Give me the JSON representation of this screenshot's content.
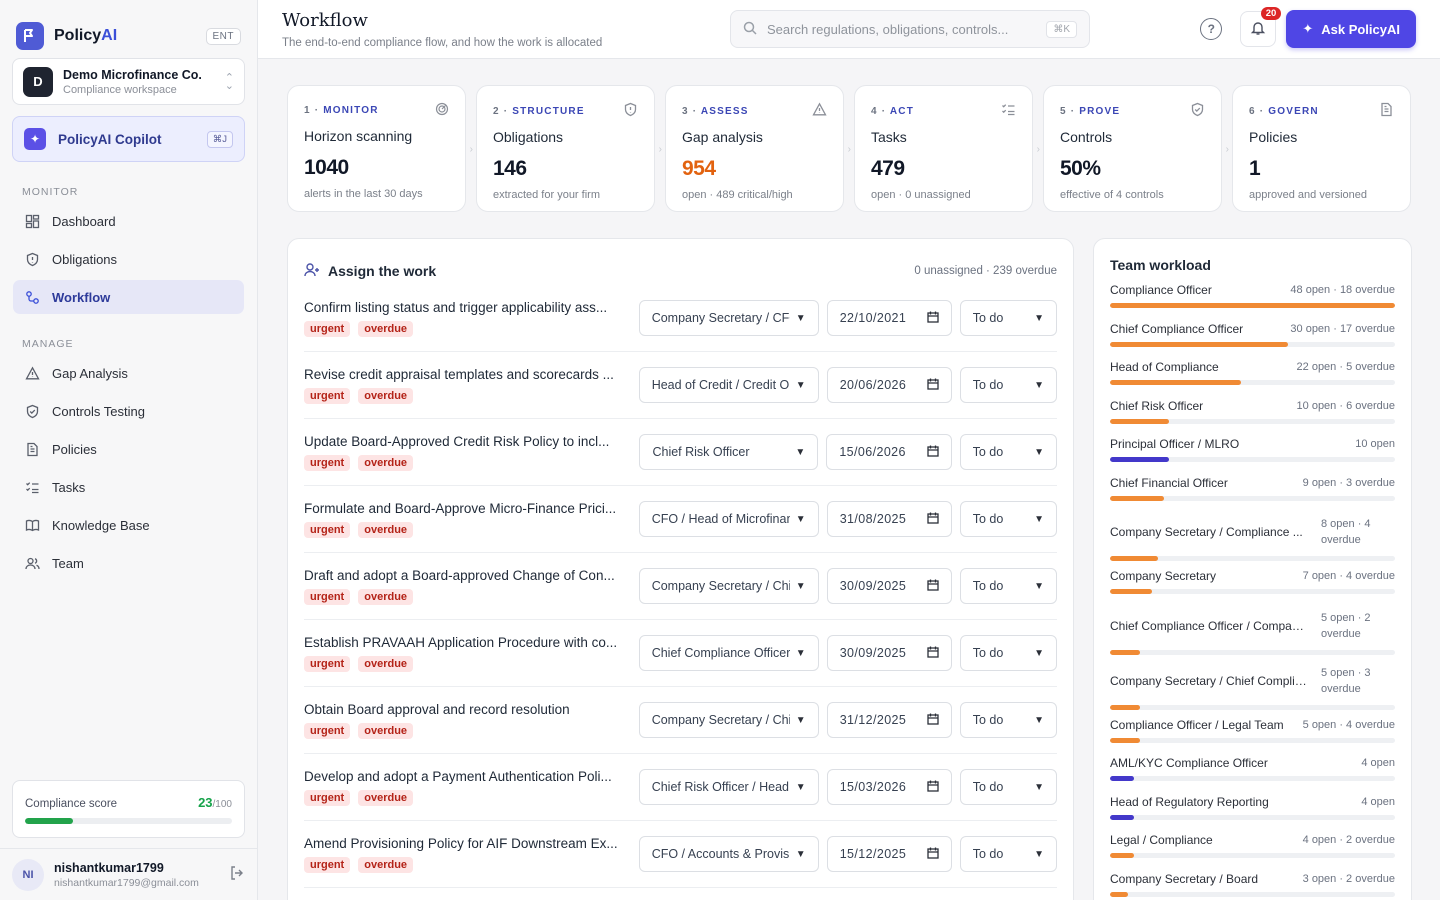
{
  "brand": {
    "name_a": "Policy",
    "name_b": "AI",
    "tier": "ENT"
  },
  "workspace": {
    "initial": "D",
    "name": "Demo Microfinance Co.",
    "sub": "Compliance workspace"
  },
  "copilot": {
    "label": "PolicyAI Copilot",
    "shortcut": "⌘J"
  },
  "nav": {
    "monitor_label": "MONITOR",
    "manage_label": "MANAGE",
    "monitor": [
      {
        "label": "Dashboard",
        "icon": "dashboard-icon"
      },
      {
        "label": "Obligations",
        "icon": "shield-icon"
      },
      {
        "label": "Workflow",
        "icon": "workflow-icon",
        "active": true
      }
    ],
    "manage": [
      {
        "label": "Gap Analysis",
        "icon": "warning-icon"
      },
      {
        "label": "Controls Testing",
        "icon": "shield-check-icon"
      },
      {
        "label": "Policies",
        "icon": "document-icon"
      },
      {
        "label": "Tasks",
        "icon": "checklist-icon"
      },
      {
        "label": "Knowledge Base",
        "icon": "book-icon"
      },
      {
        "label": "Team",
        "icon": "users-icon"
      }
    ]
  },
  "score": {
    "label": "Compliance score",
    "value": "23",
    "max": "/100",
    "fraction": 0.23
  },
  "user": {
    "initials": "NI",
    "name": "nishantkumar1799",
    "email": "nishantkumar1799@gmail.com"
  },
  "header": {
    "title": "Workflow",
    "subtitle": "The end-to-end compliance flow, and how the work is allocated",
    "search_placeholder": "Search regulations, obligations, controls...",
    "search_shortcut": "⌘K",
    "notifications": "20",
    "ask_label": "Ask PolicyAI"
  },
  "stages": [
    {
      "num": "1 · ",
      "step": "MONITOR",
      "name": "Horizon scanning",
      "value": "1040",
      "desc": "alerts in the last 30 days",
      "icon": "radar-icon",
      "warn": false
    },
    {
      "num": "2 · ",
      "step": "STRUCTURE",
      "name": "Obligations",
      "value": "146",
      "desc": "extracted for your firm",
      "icon": "shield-icon",
      "warn": false
    },
    {
      "num": "3 · ",
      "step": "ASSESS",
      "name": "Gap analysis",
      "value": "954",
      "desc": "open · 489 critical/high",
      "icon": "warning-icon",
      "warn": true
    },
    {
      "num": "4 · ",
      "step": "ACT",
      "name": "Tasks",
      "value": "479",
      "desc": "open · 0 unassigned",
      "icon": "checklist-icon",
      "warn": false
    },
    {
      "num": "5 · ",
      "step": "PROVE",
      "name": "Controls",
      "value": "50%",
      "desc": "effective of 4 controls",
      "icon": "shield-check-icon",
      "warn": false
    },
    {
      "num": "6 · ",
      "step": "GOVERN",
      "name": "Policies",
      "value": "1",
      "desc": "approved and versioned",
      "icon": "document-icon",
      "warn": false
    }
  ],
  "assign": {
    "title": "Assign the work",
    "meta": "0 unassigned · 239 overdue",
    "tag_urgent": "urgent",
    "tag_overdue": "overdue",
    "rows": [
      {
        "title": "Confirm listing status and trigger applicability ass...",
        "owner": "Company Secretary / CFO",
        "date": "22/10/2021",
        "status": "To do"
      },
      {
        "title": "Revise credit appraisal templates and scorecards ...",
        "owner": "Head of Credit / Credit Op",
        "date": "20/06/2026",
        "status": "To do"
      },
      {
        "title": "Update Board-Approved Credit Risk Policy to incl...",
        "owner": "Chief Risk Officer",
        "date": "15/06/2026",
        "status": "To do"
      },
      {
        "title": "Formulate and Board-Approve Micro-Finance Prici...",
        "owner": "CFO / Head of Microfinanc",
        "date": "31/08/2025",
        "status": "To do"
      },
      {
        "title": "Draft and adopt a Board-approved Change of Con...",
        "owner": "Company Secretary / Chie",
        "date": "30/09/2025",
        "status": "To do"
      },
      {
        "title": "Establish PRAVAAH Application Procedure with co...",
        "owner": "Chief Compliance Officer",
        "date": "30/09/2025",
        "status": "To do"
      },
      {
        "title": "Obtain Board approval and record resolution",
        "owner": "Company Secretary / Chie",
        "date": "31/12/2025",
        "status": "To do"
      },
      {
        "title": "Develop and adopt a Payment Authentication Poli...",
        "owner": "Chief Risk Officer / Head o",
        "date": "15/03/2026",
        "status": "To do"
      },
      {
        "title": "Amend Provisioning Policy for AIF Downstream Ex...",
        "owner": "CFO / Accounts & Provisio",
        "date": "15/12/2025",
        "status": "To do"
      }
    ]
  },
  "workload": {
    "title": "Team workload",
    "colors": {
      "overdue": "#f08a34",
      "clear": "#4338ca"
    },
    "items": [
      {
        "name": "Compliance Officer",
        "stat": "48 open · 18 overdue",
        "fill": 1.0,
        "overdue": true
      },
      {
        "name": "Chief Compliance Officer",
        "stat": "30 open · 17 overdue",
        "fill": 0.625,
        "overdue": true
      },
      {
        "name": "Head of Compliance",
        "stat": "22 open · 5 overdue",
        "fill": 0.458,
        "overdue": true
      },
      {
        "name": "Chief Risk Officer",
        "stat": "10 open · 6 overdue",
        "fill": 0.208,
        "overdue": true
      },
      {
        "name": "Principal Officer / MLRO",
        "stat": "10 open",
        "fill": 0.208,
        "overdue": false
      },
      {
        "name": "Chief Financial Officer",
        "stat": "9 open · 3 overdue",
        "fill": 0.188,
        "overdue": true
      },
      {
        "name": "Company Secretary / Compliance ...",
        "stat": "8 open · 4 overdue",
        "fill": 0.167,
        "overdue": true,
        "wrap": true
      },
      {
        "name": "Company Secretary",
        "stat": "7 open · 4 overdue",
        "fill": 0.146,
        "overdue": true
      },
      {
        "name": "Chief Compliance Officer / Compan...",
        "stat": "5 open · 2 overdue",
        "fill": 0.104,
        "overdue": true,
        "wrap": true
      },
      {
        "name": "Company Secretary / Chief Complia...",
        "stat": "5 open · 3 overdue",
        "fill": 0.104,
        "overdue": true,
        "wrap": true
      },
      {
        "name": "Compliance Officer / Legal Team",
        "stat": "5 open · 4 overdue",
        "fill": 0.104,
        "overdue": true
      },
      {
        "name": "AML/KYC Compliance Officer",
        "stat": "4 open",
        "fill": 0.083,
        "overdue": false
      },
      {
        "name": "Head of Regulatory Reporting",
        "stat": "4 open",
        "fill": 0.083,
        "overdue": false
      },
      {
        "name": "Legal / Compliance",
        "stat": "4 open · 2 overdue",
        "fill": 0.083,
        "overdue": true
      },
      {
        "name": "Company Secretary / Board",
        "stat": "3 open · 2 overdue",
        "fill": 0.063,
        "overdue": true
      }
    ]
  }
}
